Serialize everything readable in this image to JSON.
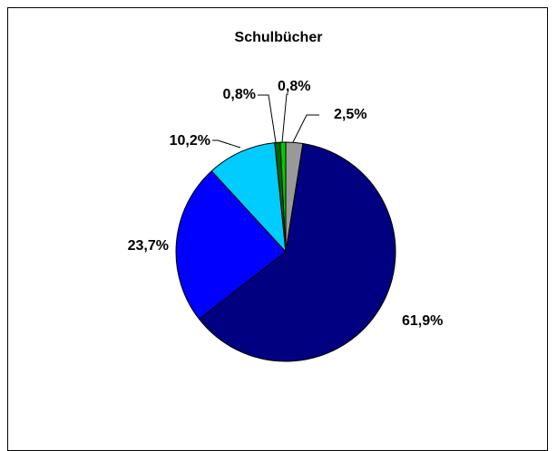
{
  "chart_data": {
    "type": "pie",
    "title": "Schulbücher",
    "start_angle_deg": 0,
    "direction": "clockwise",
    "slices": [
      {
        "value": 2.5,
        "label": "2,5%",
        "color": "#999999"
      },
      {
        "value": 61.9,
        "label": "61,9%",
        "color": "#000080"
      },
      {
        "value": 23.7,
        "label": "23,7%",
        "color": "#0000FF"
      },
      {
        "value": 10.2,
        "label": "10,2%",
        "color": "#00CCFF"
      },
      {
        "value": 0.8,
        "label": "0,8%",
        "color": "#006600"
      },
      {
        "value": 0.8,
        "label": "0,8%",
        "color": "#00CC00"
      }
    ]
  }
}
